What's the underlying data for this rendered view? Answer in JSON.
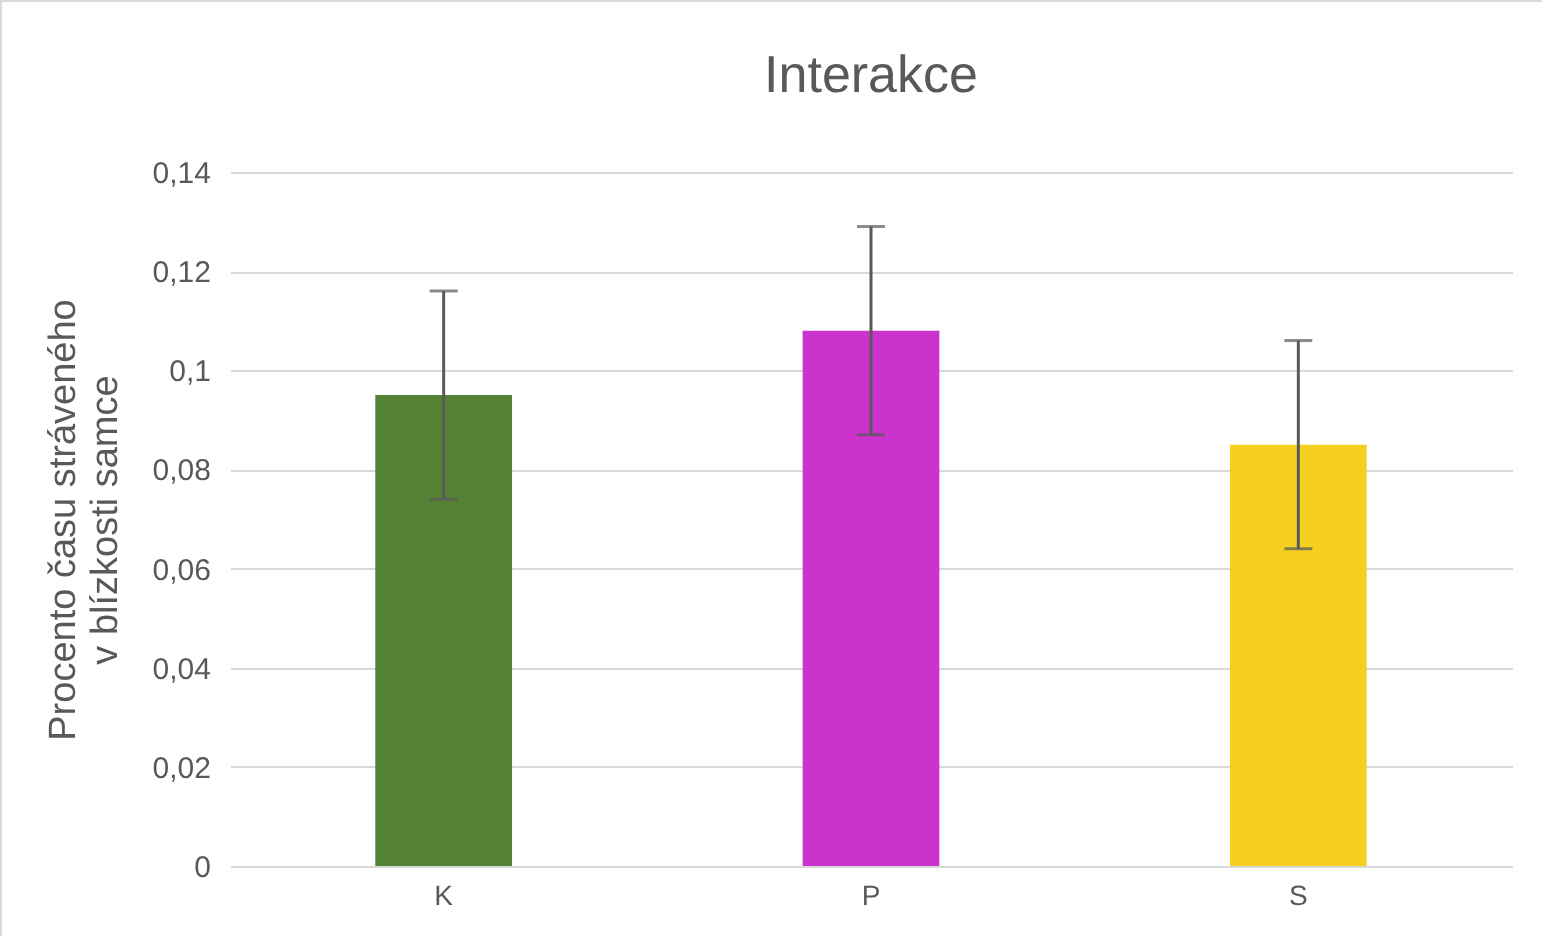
{
  "chart_data": {
    "type": "bar",
    "title": "Interakce",
    "ylabel": "Procento času stráveného v blízkosti samce",
    "categories": [
      "K",
      "P",
      "S"
    ],
    "values": [
      0.095,
      0.108,
      0.085
    ],
    "colors": [
      "#548235",
      "#cc33cc",
      "#f5d020"
    ],
    "errors": [
      0.021,
      0.021,
      0.021
    ],
    "ylim": [
      0,
      0.14
    ],
    "yticks": [
      0,
      {
        "value": 0.02,
        "label": "0,02"
      },
      {
        "value": 0.04,
        "label": "0,04"
      },
      {
        "value": 0.06,
        "label": "0,06"
      },
      {
        "value": 0.08,
        "label": "0,08"
      },
      {
        "value": 0.1,
        "label": "0,1"
      },
      {
        "value": 0.12,
        "label": "0,12"
      },
      {
        "value": 0.14,
        "label": "0,14"
      }
    ],
    "grid": "y"
  }
}
